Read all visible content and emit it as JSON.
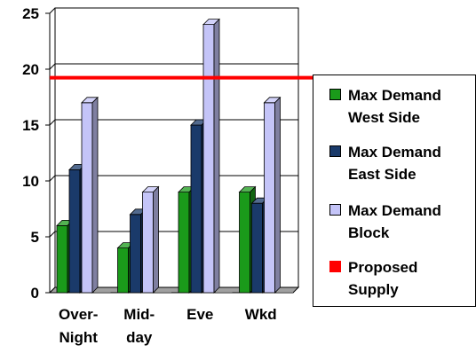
{
  "chart_data": {
    "type": "bar",
    "categories": [
      "Over-\nNight",
      "Mid-\nday",
      "Eve",
      "Wkd"
    ],
    "series": [
      {
        "name": "Max Demand\nWest Side",
        "values": [
          6,
          4,
          9,
          9
        ],
        "color": "#1a9a1a"
      },
      {
        "name": "Max Demand\nEast Side",
        "values": [
          11,
          7,
          15,
          8
        ],
        "color": "#1a3a6a"
      },
      {
        "name": "Max Demand\nBlock",
        "values": [
          17,
          9,
          24,
          17
        ],
        "color": "#c4c4f8"
      }
    ],
    "reference_line": {
      "name": "Proposed\nSupply",
      "value": 19,
      "color": "#ff0000"
    },
    "ylim": [
      0,
      25
    ],
    "yticks": [
      "0",
      "5",
      "10",
      "15",
      "20",
      "25"
    ],
    "grid": true,
    "legend_position": "right",
    "style": "3d"
  }
}
